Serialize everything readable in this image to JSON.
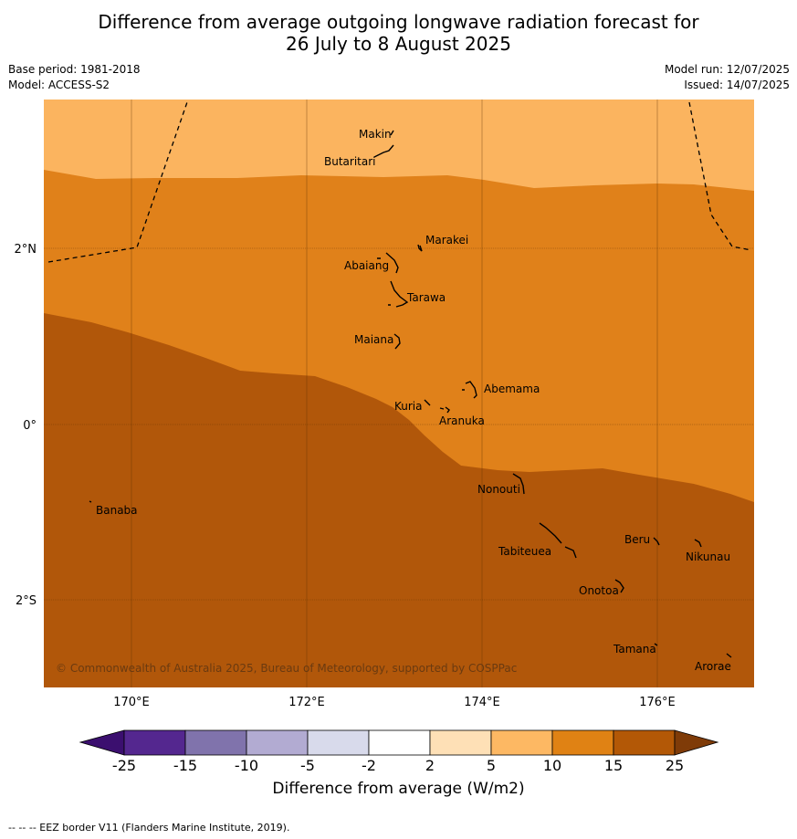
{
  "title_line1": "Difference from average outgoing longwave radiation forecast for",
  "title_line2": "26 July to 8 August 2025",
  "base_period": "Base period: 1981-2018",
  "model": "Model: ACCESS-S2",
  "model_run": "Model run: 12/07/2025",
  "issued": "Issued: 14/07/2025",
  "copyright": "© Commonwealth of Australia 2025, Bureau of Meteorology, supported by COSPPac",
  "colorbar_title": "Difference from average (W/m2)",
  "footnote": "--  --  -- EEZ border V11 (Flanders Marine Institute, 2019).",
  "axes": {
    "x_ticks": [
      "170°E",
      "172°E",
      "174°E",
      "176°E"
    ],
    "y_ticks": [
      "2°N",
      "0°",
      "2°S"
    ]
  },
  "colorbar": {
    "ticks": [
      "-25",
      "-15",
      "-10",
      "-5",
      "-2",
      "2",
      "5",
      "10",
      "15",
      "25"
    ],
    "colors": [
      "#3b0f6f",
      "#54278f",
      "#8073ac",
      "#b2abd2",
      "#d8daeb",
      "#ffffff",
      "#fee0b6",
      "#fdb863",
      "#e08214",
      "#b35806",
      "#7f3b08"
    ]
  },
  "field_colors": {
    "band_5_10": "#fbb45f",
    "band_10_15": "#e0811a",
    "band_15_25": "#b1570a"
  },
  "places": [
    "Makin",
    "Butaritari",
    "Marakei",
    "Abaiang",
    "Tarawa",
    "Maiana",
    "Abemama",
    "Kuria",
    "Aranuka",
    "Nonouti",
    "Banaba",
    "Tabiteuea",
    "Beru",
    "Nikunau",
    "Onotoa",
    "Tamana",
    "Arorae"
  ]
}
